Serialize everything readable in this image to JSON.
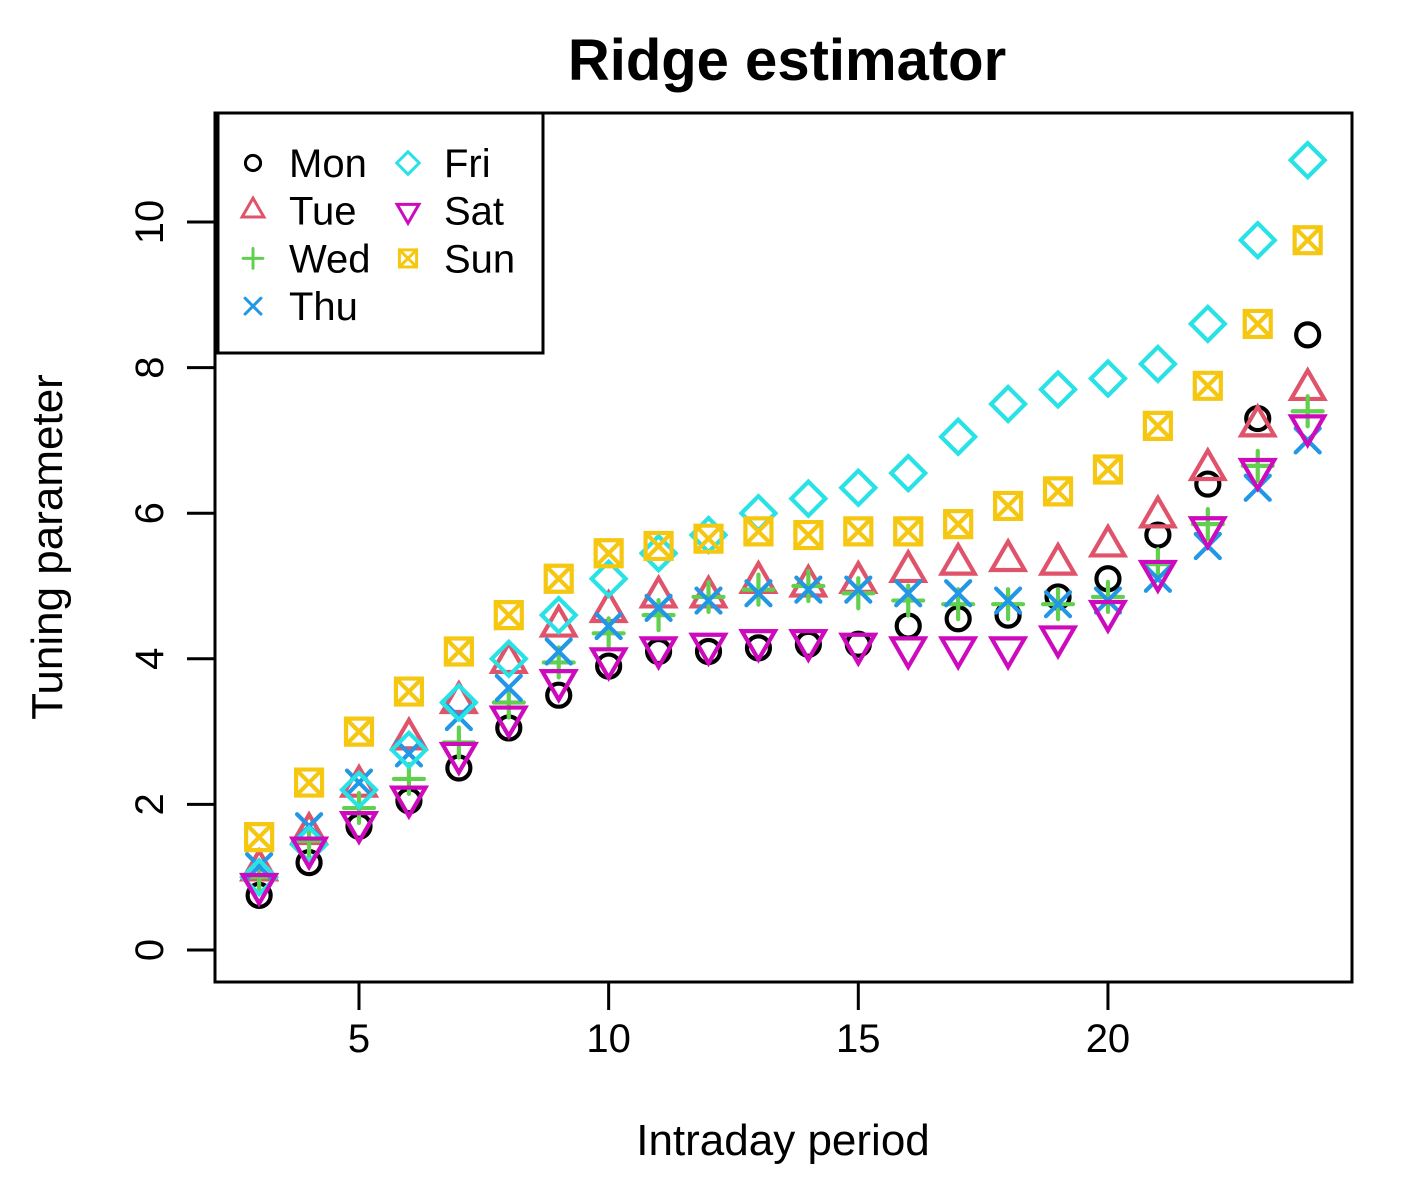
{
  "title": "Ridge estimator",
  "axes": {
    "x_label": "Intraday period",
    "y_label": "Tuning parameter"
  },
  "chart_data": {
    "type": "scatter",
    "title": "Ridge estimator",
    "xlabel": "Intraday period",
    "ylabel": "Tuning parameter",
    "grid": false,
    "legend_position": "top-left",
    "x_ticks": [
      5,
      10,
      15,
      20
    ],
    "y_ticks": [
      0,
      2,
      4,
      6,
      8,
      10
    ],
    "xlim": [
      2.1,
      24.9
    ],
    "ylim": [
      -0.45,
      11.5
    ],
    "x": [
      3,
      4,
      5,
      6,
      7,
      8,
      9,
      10,
      11,
      12,
      13,
      14,
      15,
      16,
      17,
      18,
      19,
      20,
      21,
      22,
      23,
      24
    ],
    "series": [
      {
        "name": "Mon",
        "marker": "circle",
        "color": "#000000",
        "values": [
          0.75,
          1.2,
          1.7,
          2.05,
          2.5,
          3.05,
          3.5,
          3.9,
          4.1,
          4.1,
          4.15,
          4.2,
          4.2,
          4.45,
          4.55,
          4.6,
          4.85,
          5.1,
          5.7,
          6.4,
          7.3,
          8.45
        ]
      },
      {
        "name": "Tue",
        "marker": "triangle-up",
        "color": "#DF536B",
        "values": [
          1.1,
          1.6,
          2.25,
          2.9,
          3.4,
          3.95,
          4.45,
          4.65,
          4.85,
          4.85,
          5.05,
          5.0,
          5.05,
          5.2,
          5.3,
          5.35,
          5.3,
          5.55,
          5.95,
          6.6,
          7.2,
          7.7
        ]
      },
      {
        "name": "Wed",
        "marker": "plus",
        "color": "#61D04F",
        "values": [
          1.0,
          1.5,
          1.95,
          2.35,
          2.85,
          3.4,
          3.95,
          4.35,
          4.6,
          4.85,
          4.95,
          5.0,
          4.9,
          4.8,
          4.75,
          4.75,
          4.75,
          4.85,
          5.3,
          5.85,
          6.65,
          7.4
        ]
      },
      {
        "name": "Thu",
        "marker": "x",
        "color": "#2297E6",
        "values": [
          1.15,
          1.7,
          2.3,
          2.7,
          3.2,
          3.6,
          4.1,
          4.45,
          4.7,
          4.8,
          4.9,
          4.95,
          4.95,
          4.9,
          4.9,
          4.8,
          4.75,
          4.8,
          5.1,
          5.55,
          6.35,
          7.0
        ]
      },
      {
        "name": "Fri",
        "marker": "diamond",
        "color": "#28E2E5",
        "values": [
          1.0,
          1.45,
          2.2,
          2.75,
          3.4,
          4.0,
          4.6,
          5.1,
          5.45,
          5.7,
          6.0,
          6.2,
          6.35,
          6.55,
          7.05,
          7.5,
          7.7,
          7.85,
          8.05,
          8.6,
          9.75,
          10.85
        ]
      },
      {
        "name": "Sat",
        "marker": "triangle-down",
        "color": "#CD0BBC",
        "values": [
          0.9,
          1.4,
          1.75,
          2.1,
          2.7,
          3.2,
          3.7,
          4.0,
          4.15,
          4.2,
          4.25,
          4.25,
          4.2,
          4.15,
          4.15,
          4.15,
          4.3,
          4.65,
          5.2,
          5.8,
          6.6,
          7.2
        ]
      },
      {
        "name": "Sun",
        "marker": "square-x",
        "color": "#F5C710",
        "values": [
          1.55,
          2.3,
          3.0,
          3.55,
          4.1,
          4.6,
          5.1,
          5.45,
          5.55,
          5.65,
          5.75,
          5.7,
          5.75,
          5.75,
          5.85,
          6.1,
          6.3,
          6.6,
          7.2,
          7.75,
          8.6,
          9.75
        ]
      }
    ]
  },
  "legend": {
    "columns": [
      [
        "Mon",
        "Tue",
        "Wed",
        "Thu"
      ],
      [
        "Fri",
        "Sat",
        "Sun"
      ]
    ]
  }
}
